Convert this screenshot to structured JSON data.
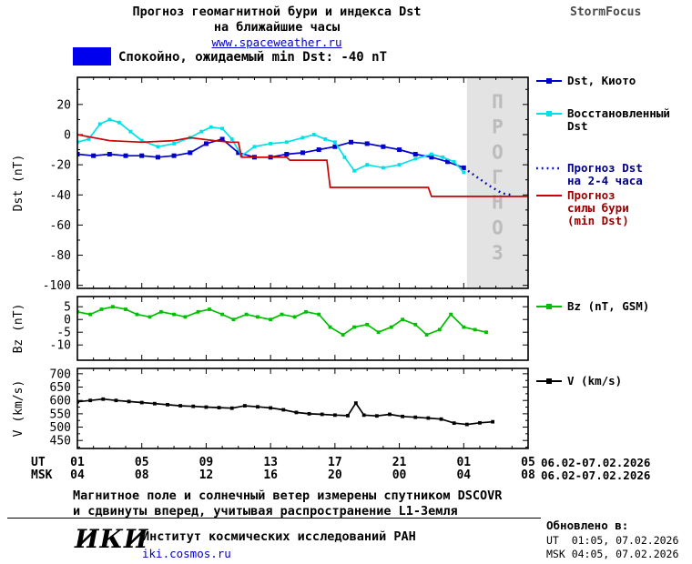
{
  "header": {
    "title_line1": "Прогноз геомагнитной бури и индекса Dst",
    "title_line2": "на ближайшие часы",
    "url": "www.spaceweather.ru",
    "brand": "StormFocus"
  },
  "status": {
    "label": "Спокойно, ожидаемый min Dst: -40 nT",
    "box_color": "#0000EE"
  },
  "chart_data": [
    {
      "type": "line",
      "ylabel": "Dst (nT)",
      "ylim": [
        -102,
        38
      ],
      "yticks": [
        20,
        0,
        -20,
        -40,
        -60,
        -80,
        -100
      ],
      "yminor": 10,
      "xlim": [
        1,
        29
      ],
      "xticks_hours": [
        1,
        5,
        9,
        13,
        17,
        21,
        25,
        29
      ],
      "grid": false,
      "forecast_region": {
        "start_hour": 25.2,
        "end_hour": 29,
        "label": "ПРОГНОЗ",
        "fill": "#E3E3E3",
        "label_color": "#BCBCBC"
      },
      "series": [
        {
          "name": "Dst, Киото",
          "color": "#0000CD",
          "style": "solid",
          "marker": "square",
          "x": [
            1,
            2,
            3,
            4,
            5,
            6,
            7,
            8,
            9,
            10,
            11,
            12,
            13,
            14,
            15,
            16,
            17,
            18,
            19,
            20,
            21,
            22,
            23,
            24,
            25
          ],
          "y": [
            -13,
            -14,
            -13,
            -14,
            -14,
            -15,
            -14,
            -12,
            -6,
            -3,
            -12,
            -15,
            -15,
            -13,
            -12,
            -10,
            -8,
            -5,
            -6,
            -8,
            -10,
            -13,
            -15,
            -18,
            -22
          ]
        },
        {
          "name": "Восстановленный Dst",
          "color": "#00E0E8",
          "style": "solid",
          "marker": "square",
          "x": [
            1,
            1.7,
            2.4,
            3,
            3.6,
            4.3,
            5,
            6,
            7,
            8,
            8.7,
            9.3,
            10,
            10.6,
            11.2,
            12,
            13,
            14,
            15,
            15.7,
            16.4,
            17,
            17.6,
            18.2,
            19,
            20,
            21,
            22,
            23,
            23.7,
            24.4,
            25
          ],
          "y": [
            -5,
            -3,
            7,
            10,
            8,
            2,
            -4,
            -8,
            -6,
            -2,
            2,
            5,
            4,
            -3,
            -14,
            -8,
            -6,
            -5,
            -2,
            0,
            -3,
            -5,
            -15,
            -24,
            -20,
            -22,
            -20,
            -16,
            -13,
            -15,
            -18,
            -25
          ]
        },
        {
          "name": "Прогноз Dst на 2-4 часа",
          "color": "#0000CD",
          "style": "dotted",
          "marker": "none",
          "x": [
            25,
            25.8,
            26.6,
            27.4,
            28
          ],
          "y": [
            -22,
            -28,
            -34,
            -39,
            -40
          ]
        },
        {
          "name": "Прогноз силы бури (min Dst)",
          "color": "#CC0000",
          "style": "solid",
          "marker": "none",
          "x": [
            1,
            2,
            3,
            5,
            7,
            8,
            9.5,
            10.5,
            11,
            11.2,
            14,
            14.2,
            16.5,
            16.7,
            22.8,
            23,
            29
          ],
          "y": [
            0,
            -2,
            -4,
            -5,
            -4,
            -2,
            -4,
            -5,
            -5,
            -15,
            -15,
            -17,
            -17,
            -35,
            -35,
            -41,
            -41
          ]
        }
      ]
    },
    {
      "type": "line",
      "ylabel": "Bz (nT)",
      "ylim": [
        -16,
        9
      ],
      "yticks": [
        5,
        0,
        -5,
        -10
      ],
      "yminor": null,
      "xlim": [
        1,
        29
      ],
      "xticks_hours": [
        1,
        5,
        9,
        13,
        17,
        21,
        25,
        29
      ],
      "grid": false,
      "series": [
        {
          "name": "Bz (nT, GSM)",
          "color": "#00BE00",
          "style": "solid",
          "marker": "square",
          "x": [
            1,
            1.8,
            2.5,
            3.2,
            4,
            4.7,
            5.5,
            6.2,
            7,
            7.7,
            8.5,
            9.2,
            10,
            10.7,
            11.5,
            12.2,
            13,
            13.7,
            14.5,
            15.2,
            16,
            16.7,
            17.5,
            18.2,
            19,
            19.7,
            20.5,
            21.2,
            22,
            22.7,
            23.5,
            24.2,
            25,
            25.7,
            26.4
          ],
          "y": [
            3,
            2,
            4,
            5,
            4,
            2,
            1,
            3,
            2,
            1,
            3,
            4,
            2,
            0,
            2,
            1,
            0,
            2,
            1,
            3,
            2,
            -3,
            -6,
            -3,
            -2,
            -5,
            -3,
            0,
            -2,
            -6,
            -4,
            2,
            -3,
            -4,
            -5
          ]
        }
      ]
    },
    {
      "type": "line",
      "ylabel": "V (km/s)",
      "ylim": [
        420,
        720
      ],
      "yticks": [
        700,
        650,
        600,
        550,
        500,
        450
      ],
      "yminor": 25,
      "xlim": [
        1,
        29
      ],
      "xticks_hours": [
        1,
        5,
        9,
        13,
        17,
        21,
        25,
        29
      ],
      "grid": false,
      "series": [
        {
          "name": "V (km/s)",
          "color": "#000000",
          "style": "solid",
          "marker": "square",
          "x": [
            1,
            1.8,
            2.6,
            3.4,
            4.2,
            5,
            5.8,
            6.6,
            7.4,
            8.2,
            9,
            9.8,
            10.6,
            11.4,
            12.2,
            13,
            13.8,
            14.6,
            15.4,
            16.2,
            17,
            17.8,
            18.3,
            18.8,
            19.6,
            20.4,
            21.2,
            22,
            22.8,
            23.6,
            24.4,
            25.2,
            26,
            26.8
          ],
          "y": [
            595,
            600,
            605,
            600,
            596,
            592,
            588,
            584,
            580,
            578,
            575,
            573,
            571,
            580,
            576,
            572,
            565,
            555,
            550,
            548,
            545,
            543,
            590,
            545,
            542,
            548,
            540,
            537,
            534,
            530,
            515,
            510,
            516,
            520
          ]
        }
      ]
    }
  ],
  "legend": {
    "main": [
      {
        "lines": [
          "Dst, Киото"
        ],
        "color": "#0000CD",
        "style": "solid",
        "marker": "square",
        "text_color": "#000000"
      },
      {
        "lines": [
          "Восстановленный",
          "Dst"
        ],
        "color": "#00E0E8",
        "style": "solid",
        "marker": "square",
        "text_color": "#000000"
      },
      {
        "lines": [
          "Прогноз Dst",
          "на 2-4 часа"
        ],
        "color": "#0000CD",
        "style": "dotted",
        "marker": "none",
        "text_color": "#00008B"
      },
      {
        "lines": [
          "Прогноз",
          "силы бури",
          "(min Dst)"
        ],
        "color": "#CC0000",
        "style": "solid",
        "marker": "none",
        "text_color": "#990000"
      }
    ],
    "bz": [
      {
        "lines": [
          "Bz (nT, GSM)"
        ],
        "color": "#00BE00",
        "style": "solid",
        "marker": "square",
        "text_color": "#000000"
      }
    ],
    "v": [
      {
        "lines": [
          "V (km/s)"
        ],
        "color": "#000000",
        "style": "solid",
        "marker": "square",
        "text_color": "#000000"
      }
    ]
  },
  "xaxis": {
    "ut_label": "UT",
    "msk_label": "MSK",
    "tick_hours": [
      1,
      5,
      9,
      13,
      17,
      21,
      25,
      29
    ],
    "ut_ticks": [
      "01",
      "05",
      "09",
      "13",
      "17",
      "21",
      "01",
      "05"
    ],
    "msk_ticks": [
      "04",
      "08",
      "12",
      "16",
      "20",
      "00",
      "04",
      "08"
    ],
    "ut_date_range": "06.02-07.02.2026",
    "msk_date_range": "06.02-07.02.2026"
  },
  "footnote": {
    "line1": "Магнитное поле и солнечный ветер измерены спутником DSCOVR",
    "line2": "и сдвинуты вперед, учитывая распространение L1-Земля"
  },
  "footer": {
    "logo": "ИКИ",
    "institute": "Институт космических исследований РАН",
    "site": "iki.cosmos.ru",
    "updated_label": "Обновлено в:",
    "updated_ut": "UT  01:05, 07.02.2026",
    "updated_msk": "MSK 04:05, 07.02.2026"
  }
}
